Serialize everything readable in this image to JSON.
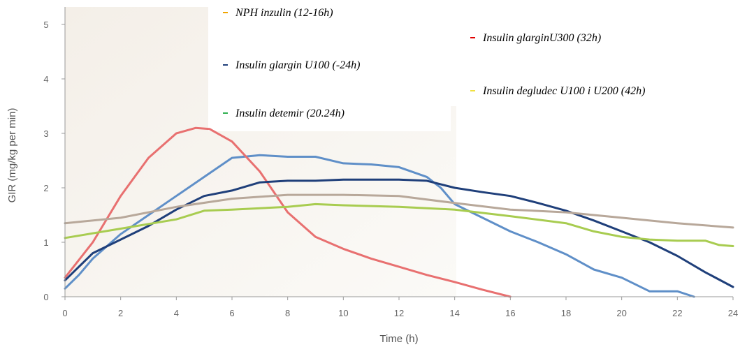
{
  "chart_data": {
    "type": "line",
    "title": "",
    "xlabel": "Time (h)",
    "ylabel": "GIR (mg/kg per min)",
    "xlim": [
      0,
      24
    ],
    "ylim": [
      0,
      5
    ],
    "x_ticks": [
      0,
      2,
      4,
      6,
      8,
      10,
      12,
      14,
      16,
      18,
      20,
      22,
      24
    ],
    "y_ticks": [
      0,
      1,
      2,
      3,
      4,
      5
    ],
    "grid": false,
    "legend_placement": "top",
    "series": [
      {
        "name": "NPH inzulin (12-16h)",
        "color": "#5f8fc8",
        "legend_color": "#f0a500",
        "points": [
          [
            0,
            0.15
          ],
          [
            0.5,
            0.4
          ],
          [
            1,
            0.7
          ],
          [
            2,
            1.15
          ],
          [
            3,
            1.5
          ],
          [
            4,
            1.85
          ],
          [
            5,
            2.2
          ],
          [
            6,
            2.55
          ],
          [
            7,
            2.6
          ],
          [
            8,
            2.57
          ],
          [
            9,
            2.57
          ],
          [
            10,
            2.45
          ],
          [
            11,
            2.43
          ],
          [
            12,
            2.38
          ],
          [
            13,
            2.2
          ],
          [
            13.5,
            2.0
          ],
          [
            14,
            1.7
          ],
          [
            15,
            1.45
          ],
          [
            16,
            1.2
          ],
          [
            17,
            1.0
          ],
          [
            18,
            0.78
          ],
          [
            19,
            0.5
          ],
          [
            20,
            0.35
          ],
          [
            21,
            0.1
          ],
          [
            22,
            0.1
          ],
          [
            22.6,
            0.0
          ]
        ]
      },
      {
        "name": "Insulin glarginU300 (32h)",
        "color": "#e87070",
        "legend_color": "#e00000",
        "points": [
          [
            0,
            0.35
          ],
          [
            1,
            1.0
          ],
          [
            2,
            1.85
          ],
          [
            3,
            2.55
          ],
          [
            4,
            3.0
          ],
          [
            4.7,
            3.1
          ],
          [
            5.2,
            3.08
          ],
          [
            6,
            2.85
          ],
          [
            7,
            2.3
          ],
          [
            8,
            1.55
          ],
          [
            9,
            1.1
          ],
          [
            10,
            0.88
          ],
          [
            11,
            0.7
          ],
          [
            12,
            0.55
          ],
          [
            13,
            0.4
          ],
          [
            14,
            0.27
          ],
          [
            15,
            0.13
          ],
          [
            16,
            0.0
          ]
        ]
      },
      {
        "name": "Insulin glargin U100 (-24h)",
        "color": "#1f3f7a",
        "legend_color": "#1f3f7a",
        "points": [
          [
            0,
            0.3
          ],
          [
            0.5,
            0.55
          ],
          [
            1,
            0.8
          ],
          [
            2,
            1.05
          ],
          [
            3,
            1.3
          ],
          [
            4,
            1.6
          ],
          [
            5,
            1.85
          ],
          [
            6,
            1.95
          ],
          [
            7,
            2.1
          ],
          [
            8,
            2.13
          ],
          [
            9,
            2.13
          ],
          [
            10,
            2.15
          ],
          [
            11,
            2.15
          ],
          [
            12,
            2.15
          ],
          [
            13,
            2.13
          ],
          [
            14,
            2.0
          ],
          [
            15,
            1.92
          ],
          [
            16,
            1.85
          ],
          [
            17,
            1.72
          ],
          [
            18,
            1.58
          ],
          [
            19,
            1.4
          ],
          [
            20,
            1.2
          ],
          [
            21,
            1.0
          ],
          [
            22,
            0.75
          ],
          [
            23,
            0.45
          ],
          [
            24,
            0.18
          ]
        ]
      },
      {
        "name": "Insulin degludec U100 i U200 (42h)",
        "color": "#b8a89a",
        "legend_color": "#f0e040",
        "points": [
          [
            0,
            1.35
          ],
          [
            2,
            1.45
          ],
          [
            4,
            1.65
          ],
          [
            6,
            1.8
          ],
          [
            8,
            1.87
          ],
          [
            10,
            1.87
          ],
          [
            12,
            1.85
          ],
          [
            14,
            1.72
          ],
          [
            16,
            1.6
          ],
          [
            18,
            1.55
          ],
          [
            20,
            1.45
          ],
          [
            22,
            1.35
          ],
          [
            24,
            1.27
          ]
        ]
      },
      {
        "name": "Insulin detemir (20.24h)",
        "color": "#a8cc50",
        "legend_color": "#30b050",
        "points": [
          [
            0,
            1.08
          ],
          [
            2,
            1.25
          ],
          [
            4,
            1.42
          ],
          [
            5,
            1.58
          ],
          [
            6,
            1.6
          ],
          [
            8,
            1.65
          ],
          [
            9,
            1.7
          ],
          [
            10,
            1.68
          ],
          [
            12,
            1.65
          ],
          [
            14,
            1.6
          ],
          [
            16,
            1.48
          ],
          [
            18,
            1.35
          ],
          [
            19,
            1.2
          ],
          [
            20,
            1.1
          ],
          [
            21,
            1.05
          ],
          [
            22,
            1.03
          ],
          [
            23,
            1.03
          ],
          [
            23.5,
            0.95
          ],
          [
            24,
            0.93
          ]
        ]
      }
    ]
  }
}
